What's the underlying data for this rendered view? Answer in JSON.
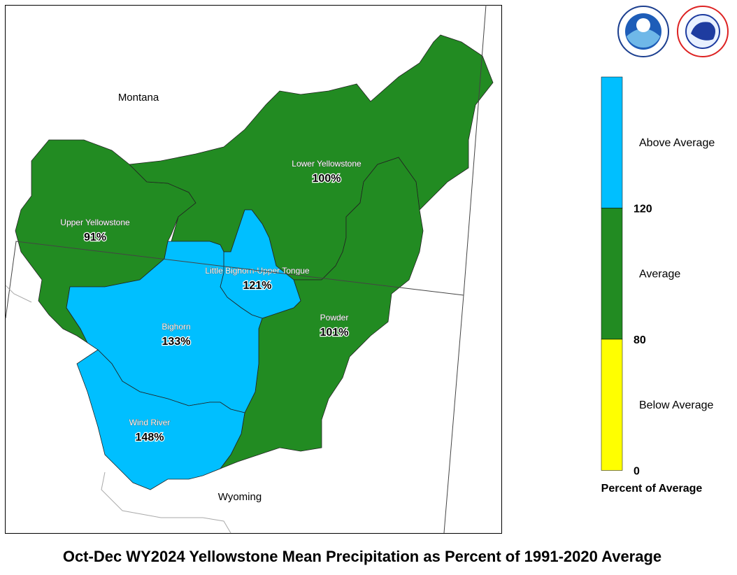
{
  "map": {
    "states": [
      "Montana",
      "Wyoming"
    ],
    "basins": [
      {
        "name": "Upper Yellowstone",
        "value": "91%",
        "color": "#228b22"
      },
      {
        "name": "Lower Yellowstone",
        "value": "100%",
        "color": "#228b22"
      },
      {
        "name": "Powder",
        "value": "101%",
        "color": "#228b22"
      },
      {
        "name": "Little Bighorn-Upper Tongue",
        "value": "121%",
        "color": "#00bfff"
      },
      {
        "name": "Bighorn",
        "value": "133%",
        "color": "#00bfff"
      },
      {
        "name": "Wind River",
        "value": "148%",
        "color": "#00bfff"
      }
    ],
    "legend": {
      "title": "Percent of Average",
      "classes": [
        {
          "label": "Above Average",
          "color": "#00bfff"
        },
        {
          "label": "Average",
          "color": "#228b22"
        },
        {
          "label": "Below Average",
          "color": "#ffff00"
        }
      ],
      "breaks": [
        120,
        80,
        0
      ]
    },
    "title": "Oct-Dec WY2024 Yellowstone Mean Precipitation as Percent of 1991-2020 Average"
  }
}
